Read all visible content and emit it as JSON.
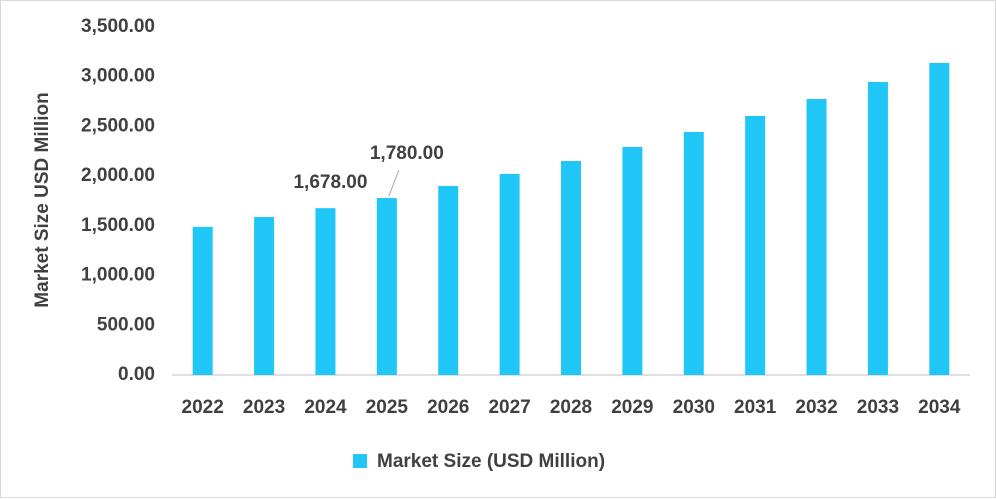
{
  "chart_data": {
    "type": "bar",
    "y_label": "Market Size USD Million",
    "categories": [
      "2022",
      "2023",
      "2024",
      "2025",
      "2026",
      "2027",
      "2028",
      "2029",
      "2030",
      "2031",
      "2032",
      "2033",
      "2034"
    ],
    "series": [
      {
        "name": "Market Size (USD Million)",
        "color": "#1fc6f6",
        "values": [
          1490,
          1589,
          1678,
          1780,
          1901,
          2022,
          2152,
          2293,
          2444,
          2605,
          2776,
          2947,
          3138
        ],
        "value_labels": [
          null,
          null,
          "1,678.00",
          "1,780.00",
          null,
          null,
          null,
          null,
          null,
          null,
          null,
          null,
          null
        ]
      }
    ],
    "ylim": [
      0,
      3500
    ],
    "yticks": [
      {
        "value": 0,
        "label": "0.00"
      },
      {
        "value": 500,
        "label": "500.00"
      },
      {
        "value": 1000,
        "label": "1,000.00"
      },
      {
        "value": 1500,
        "label": "1,500.00"
      },
      {
        "value": 2000,
        "label": "2,000.00"
      },
      {
        "value": 2500,
        "label": "2,500.00"
      },
      {
        "value": 3000,
        "label": "3,000.00"
      },
      {
        "value": 3500,
        "label": "3,500.00"
      }
    ],
    "grid": false,
    "legend": "bottom"
  }
}
